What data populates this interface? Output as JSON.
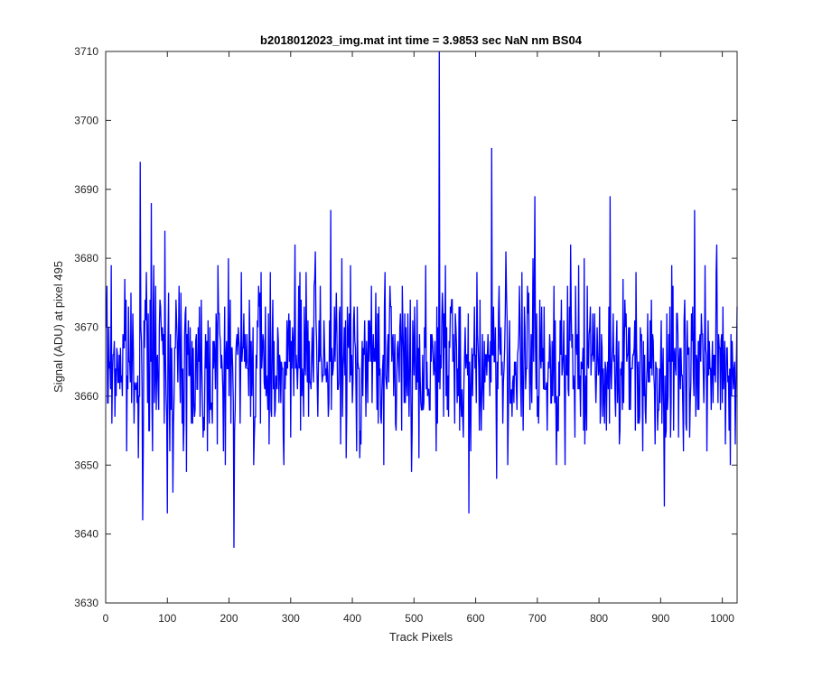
{
  "chart_data": {
    "type": "line",
    "title": "b2018012023_img.mat int time = 3.9853 sec  NaN nm BS04",
    "xlabel": "Track Pixels",
    "ylabel": "Signal (ADU) at pixel 495",
    "xlim": [
      0,
      1024
    ],
    "ylim": [
      3630,
      3710
    ],
    "xticks": [
      0,
      100,
      200,
      300,
      400,
      500,
      600,
      700,
      800,
      900,
      1000
    ],
    "yticks": [
      3630,
      3640,
      3650,
      3660,
      3670,
      3680,
      3690,
      3700,
      3710
    ],
    "grid": false,
    "line_color": "#0000ff",
    "series": [
      {
        "x_start": 1,
        "x_step": 1,
        "noise_model": "approx",
        "peaks": [
          [
            56,
            3694
          ],
          [
            60,
            3642
          ],
          [
            74,
            3688
          ],
          [
            96,
            3684
          ],
          [
            100,
            3643
          ],
          [
            208,
            3638
          ],
          [
            365,
            3687
          ],
          [
            541,
            3710
          ],
          [
            589,
            3643
          ],
          [
            626,
            3696
          ],
          [
            696,
            3689
          ],
          [
            818,
            3689
          ],
          [
            906,
            3644
          ],
          [
            955,
            3687
          ],
          [
            1013,
            3650
          ]
        ]
      }
    ]
  }
}
